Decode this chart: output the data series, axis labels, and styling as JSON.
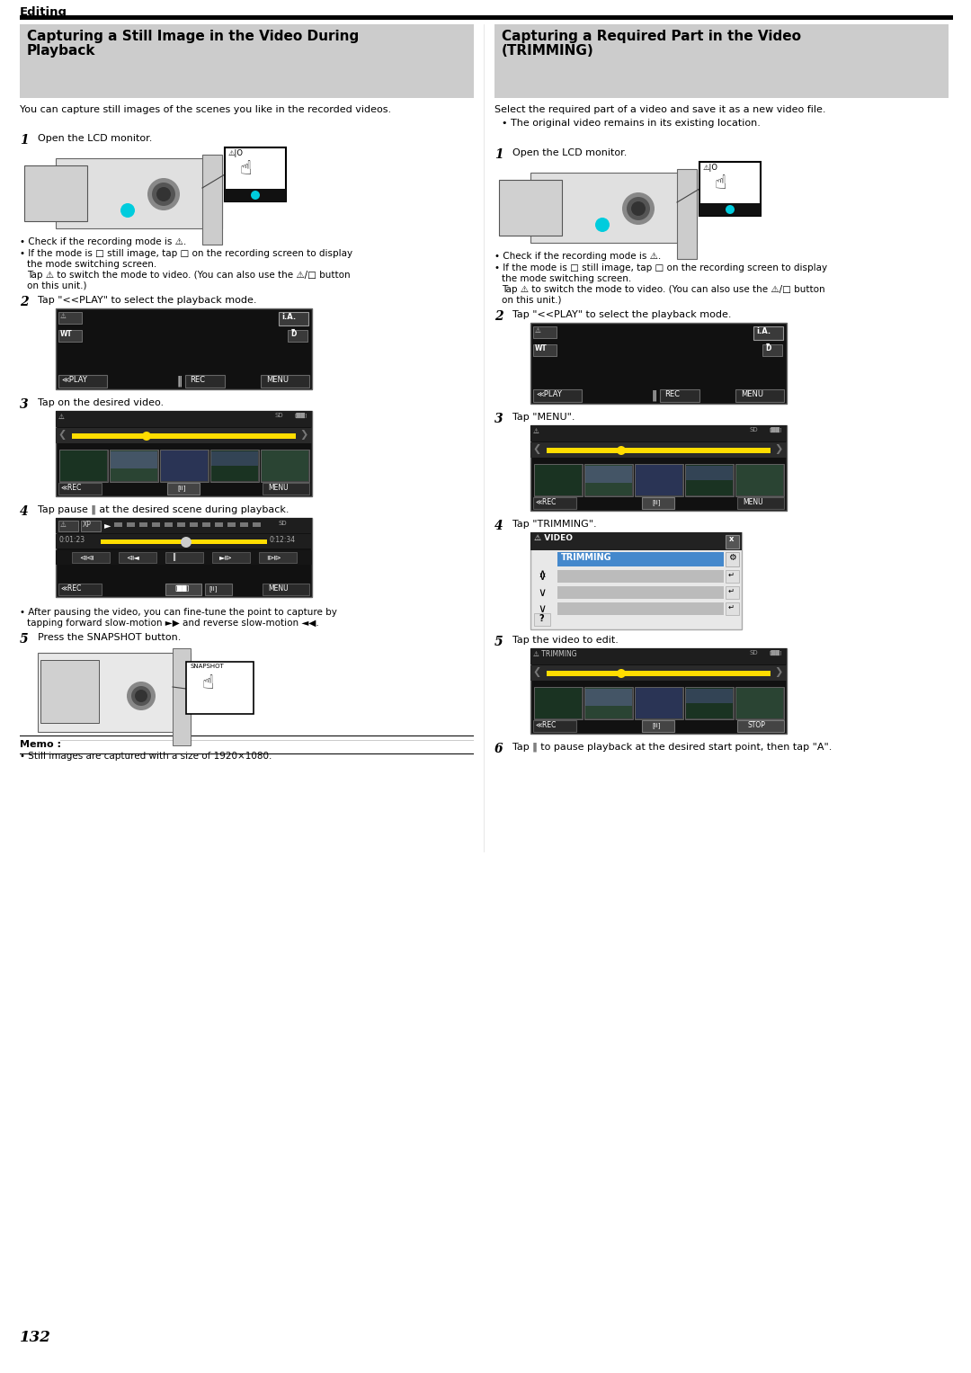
{
  "page_number": "132",
  "section_label": "Editing",
  "left_title_1": "Capturing a Still Image in the Video During",
  "left_title_2": "Playback",
  "right_title_1": "Capturing a Required Part in the Video",
  "right_title_2": "(TRIMMING)",
  "left_intro": "You can capture still images of the scenes you like in the recorded videos.",
  "right_intro": "Select the required part of a video and save it as a new video file.",
  "right_bullet0": "• The original video remains in its existing location.",
  "background_color": "#ffffff",
  "header_bg": "#cccccc",
  "yellow_color": "#ffdd00",
  "cyan_color": "#00ccdd",
  "trimming_blue": "#4488cc",
  "bul1": "• Check if the recording mode is ⚠.",
  "bul2": "• If the mode is □ still image, tap □ on the recording screen to display",
  "bul3": "the mode switching screen.",
  "bul4": "Tap ⚠ to switch the mode to video. (You can also use the ⚠/□ button",
  "bul5": "on this unit.)",
  "step4_bul1": "• After pausing the video, you can fine-tune the point to capture by",
  "step4_bul2": "tapping forward slow-motion ►▶ and reverse slow-motion ◄◀.",
  "memo_title": "Memo :",
  "memo_bul": "• Still images are captured with a size of 1920×1080.",
  "step6_right": "Tap ‖ to pause playback at the desired start point, then tap \"A\"."
}
